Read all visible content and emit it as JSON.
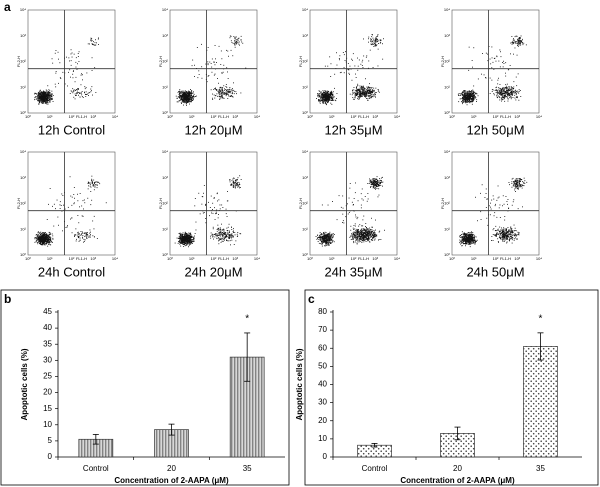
{
  "panel_a": {
    "label": "a",
    "x_axis_label": "FL1-H",
    "y_axis_label": "FL2-H",
    "axis_ticks": [
      "10⁰",
      "10¹",
      "10²",
      "10³",
      "10⁴"
    ],
    "plots": [
      {
        "label": "12h Control"
      },
      {
        "label": "12h 20μM"
      },
      {
        "label": "12h 35μM"
      },
      {
        "label": "12h 50μM"
      },
      {
        "label": "24h Control"
      },
      {
        "label": "24h 20μM"
      },
      {
        "label": "24h 35μM"
      },
      {
        "label": "24h 50μM"
      }
    ]
  },
  "chart_data": [
    {
      "type": "bar",
      "panel_label": "b",
      "ylabel": "Apoptotic cells (%)",
      "xlabel": "Concentration of 2-AAPA (μM)",
      "categories": [
        "Control",
        "20",
        "35"
      ],
      "values": [
        5.5,
        8.5,
        31
      ],
      "errors": [
        1.5,
        1.7,
        7.5
      ],
      "pattern": "hatch",
      "ylim": [
        0,
        45
      ],
      "yticks": [
        0,
        5,
        10,
        15,
        20,
        25,
        30,
        35,
        40,
        45
      ],
      "annotations": [
        {
          "text": "*",
          "x": "35"
        }
      ]
    },
    {
      "type": "bar",
      "panel_label": "c",
      "ylabel": "Apoptotic cells (%)",
      "xlabel": "Concentration of 2-AAPA (μM)",
      "categories": [
        "Control",
        "20",
        "35"
      ],
      "values": [
        6.5,
        13,
        61
      ],
      "errors": [
        1,
        3.5,
        7.5
      ],
      "pattern": "dots",
      "ylim": [
        0,
        80
      ],
      "yticks": [
        0,
        10,
        20,
        30,
        40,
        50,
        60,
        70,
        80
      ],
      "annotations": [
        {
          "text": "*",
          "x": "35"
        }
      ]
    }
  ]
}
